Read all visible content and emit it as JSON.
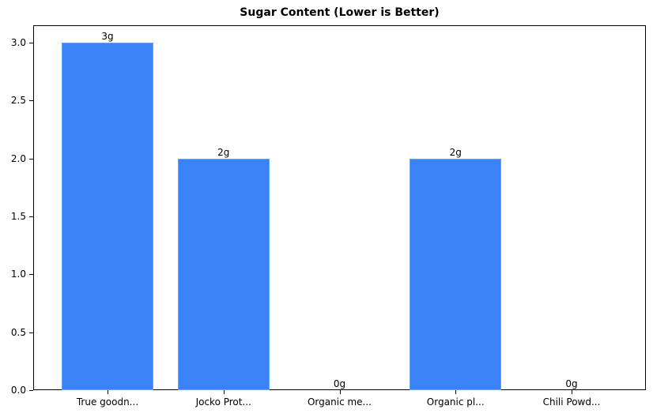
{
  "chart_data": {
    "type": "bar",
    "title": "Sugar Content (Lower is Better)",
    "xlabel": "",
    "ylabel": "",
    "categories": [
      "True goodn...",
      "Jocko Prot...",
      "Organic me...",
      "Organic pl...",
      "Chili Powd..."
    ],
    "values": [
      3,
      2,
      0,
      2,
      0
    ],
    "data_labels": [
      "3g",
      "2g",
      "0g",
      "2g",
      "0g"
    ],
    "ylim": [
      0,
      3.15
    ],
    "yticks": [
      "0.0",
      "0.5",
      "1.0",
      "1.5",
      "2.0",
      "2.5",
      "3.0"
    ],
    "bar_color": "#3b82f6",
    "grid": false,
    "legend": null
  }
}
